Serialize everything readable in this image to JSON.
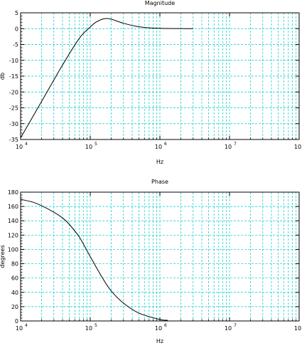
{
  "chart_data": [
    {
      "type": "line",
      "title": "Magnitude",
      "xlabel": "Hz",
      "ylabel": "db",
      "x_scale": "log",
      "xlim": [
        10000,
        100000000
      ],
      "ylim": [
        -35,
        5
      ],
      "x_ticks": [
        {
          "base": "10",
          "exp": "4"
        },
        {
          "base": "10",
          "exp": "5"
        },
        {
          "base": "10",
          "exp": "6"
        },
        {
          "base": "10",
          "exp": "7"
        },
        {
          "base": "10",
          "exp": "8"
        }
      ],
      "y_ticks": [
        "5",
        "0",
        "-5",
        "-10",
        "-15",
        "-20",
        "-25",
        "-30",
        "-35"
      ],
      "grid": true,
      "series": [
        {
          "x": [
            10000,
            20000,
            40000,
            70000,
            100000,
            120000,
            150000,
            170000,
            200000,
            300000,
            500000,
            1000000,
            3000000
          ],
          "y": [
            -34.5,
            -23,
            -11.5,
            -3,
            0.5,
            2.0,
            3.0,
            3.2,
            3.0,
            1.7,
            0.6,
            0.1,
            0.0
          ]
        }
      ]
    },
    {
      "type": "line",
      "title": "Phase",
      "xlabel": "Hz",
      "ylabel": "degrees",
      "x_scale": "log",
      "xlim": [
        10000,
        100000000
      ],
      "ylim": [
        0,
        180
      ],
      "x_ticks": [
        {
          "base": "10",
          "exp": "4"
        },
        {
          "base": "10",
          "exp": "5"
        },
        {
          "base": "10",
          "exp": "6"
        },
        {
          "base": "10",
          "exp": "7"
        },
        {
          "base": "10",
          "exp": "8"
        }
      ],
      "y_ticks": [
        "180",
        "160",
        "140",
        "120",
        "100",
        "80",
        "60",
        "40",
        "20",
        "0"
      ],
      "grid": true,
      "series": [
        {
          "x": [
            10000,
            15000,
            20000,
            30000,
            40000,
            50000,
            70000,
            100000,
            150000,
            200000,
            300000,
            500000,
            1000000,
            1300000
          ],
          "y": [
            170,
            166,
            161,
            152,
            144,
            135,
            117,
            90,
            60,
            42,
            25,
            11,
            2,
            1
          ]
        }
      ]
    }
  ]
}
